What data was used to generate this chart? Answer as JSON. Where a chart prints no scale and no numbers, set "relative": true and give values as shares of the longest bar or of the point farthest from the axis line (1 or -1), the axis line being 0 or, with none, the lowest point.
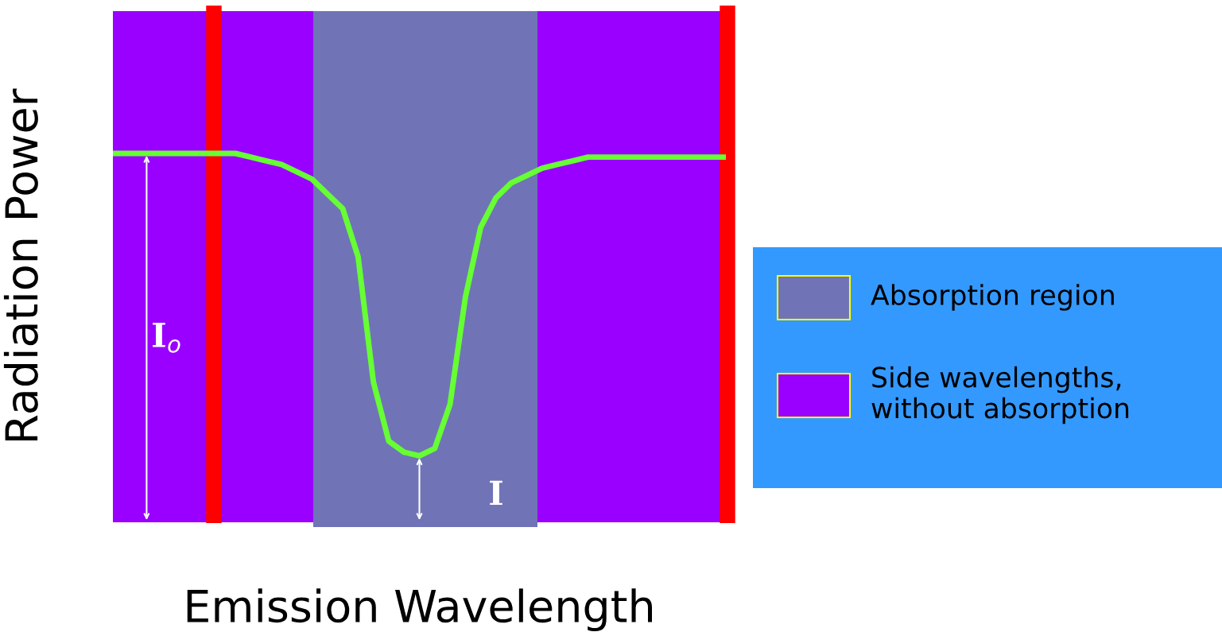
{
  "chart_data": {
    "type": "line",
    "relative": true,
    "xlabel": "Emission Wavelength",
    "ylabel": "Radiation Power",
    "categories": [
      null,
      null,
      null,
      null,
      null,
      null,
      null,
      null,
      null,
      null,
      null,
      null,
      null,
      null,
      null,
      null,
      null,
      null,
      null,
      null,
      null,
      null,
      null,
      null,
      null,
      null,
      null,
      null,
      null,
      null,
      null,
      null,
      null,
      null,
      null,
      null,
      null,
      null,
      null,
      null,
      null
    ],
    "series": [
      {
        "color": "#66ff33",
        "values": [
          1.0,
          1.0,
          1.0,
          1.0,
          1.0,
          1.0,
          1.0,
          1.0,
          1.0,
          0.99,
          0.98,
          0.97,
          0.95,
          0.93,
          0.89,
          0.85,
          0.72,
          0.38,
          0.22,
          0.19,
          0.18,
          0.2,
          0.32,
          0.61,
          0.8,
          0.88,
          0.92,
          0.94,
          0.96,
          0.97,
          0.98,
          0.99,
          0.99,
          0.99,
          0.99,
          0.99,
          0.99,
          0.99,
          0.99,
          0.99,
          0.99
        ]
      }
    ],
    "annotations": [
      "I$_{o}$",
      "I",
      "Absorption region",
      "Side wavelengths,\nwithout absorption"
    ]
  }
}
